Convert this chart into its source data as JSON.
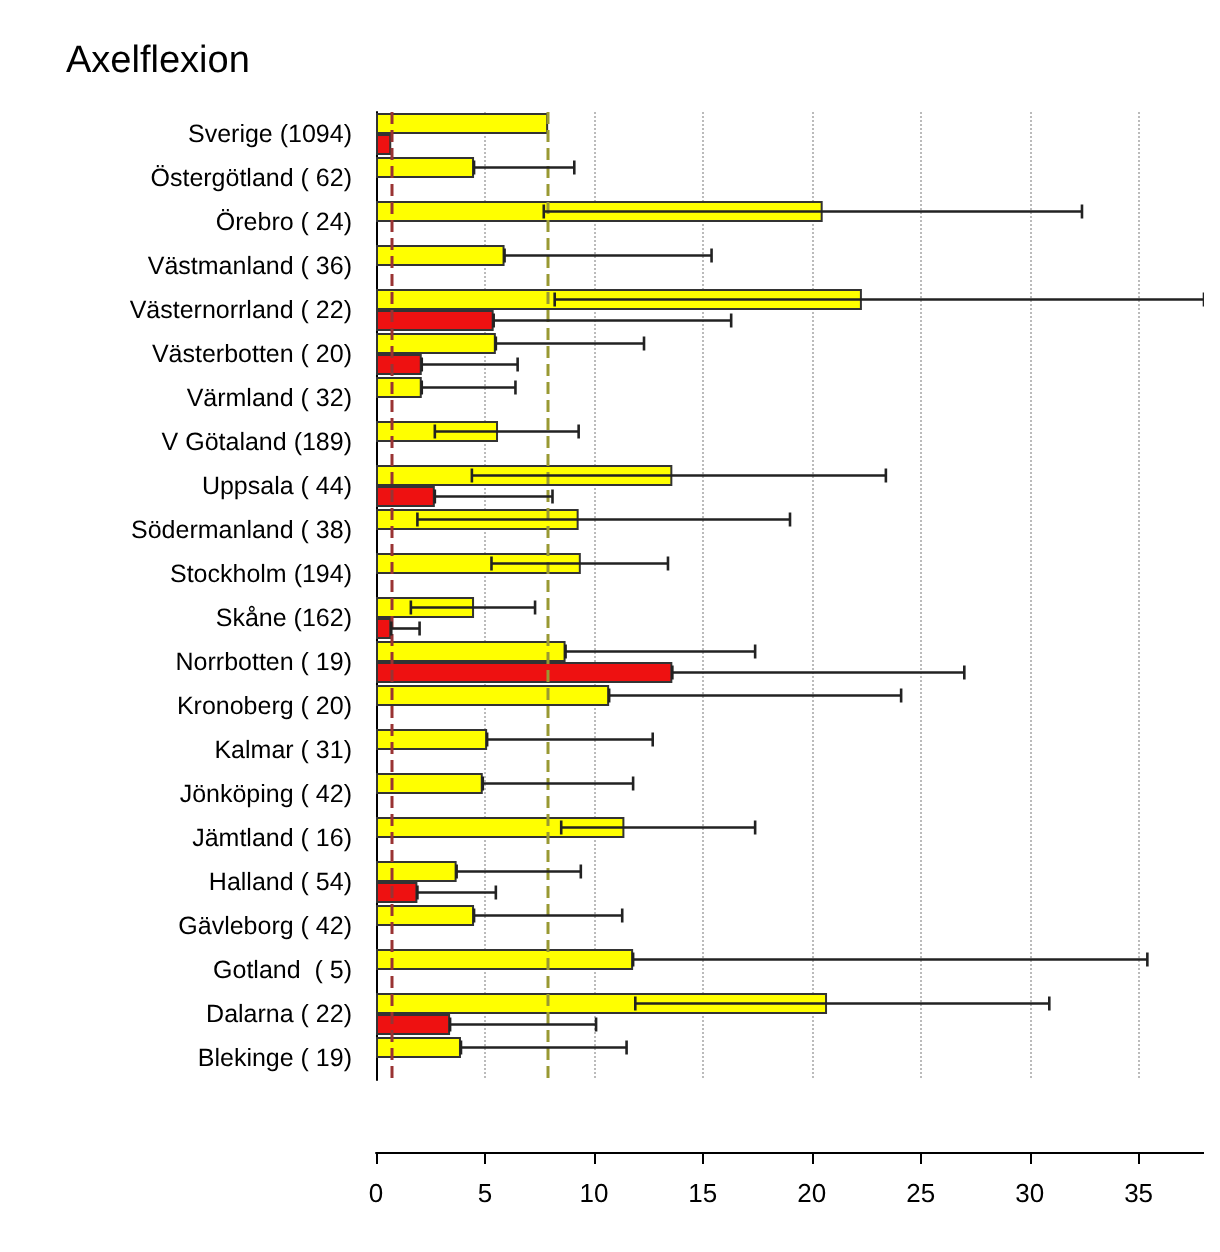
{
  "chart_data": {
    "type": "bar",
    "orientation": "horizontal",
    "title": "Axelflexion",
    "categories": [
      "Sverige (1094)",
      "Östergötland ( 62)",
      "Örebro ( 24)",
      "Västmanland ( 36)",
      "Västernorrland ( 22)",
      "Västerbotten ( 20)",
      "Värmland ( 32)",
      "V Götaland (189)",
      "Uppsala ( 44)",
      "Södermanland ( 38)",
      "Stockholm (194)",
      "Skåne (162)",
      "Norrbotten ( 19)",
      "Kronoberg ( 20)",
      "Kalmar ( 31)",
      "Jönköping ( 42)",
      "Jämtland ( 16)",
      "Halland ( 54)",
      "Gävleborg ( 42)",
      "Gotland  ( 5)",
      "Dalarna ( 22)",
      "Blekinge ( 19)"
    ],
    "series": [
      {
        "color": "#ffff00",
        "values": [
          7.9,
          4.5,
          20.5,
          5.9,
          22.3,
          5.5,
          2.1,
          5.6,
          13.6,
          9.3,
          9.4,
          4.5,
          8.7,
          10.7,
          5.1,
          4.9,
          11.4,
          3.7,
          4.5,
          11.8,
          20.7,
          3.9
        ],
        "errors": [
          null,
          [
            4.5,
            9.1
          ],
          [
            7.7,
            32.4
          ],
          [
            5.9,
            15.4
          ],
          [
            8.2,
            38
          ],
          [
            5.5,
            12.3
          ],
          [
            2.1,
            6.4
          ],
          [
            2.7,
            9.3
          ],
          [
            4.4,
            23.4
          ],
          [
            1.9,
            19.0
          ],
          [
            5.3,
            13.4
          ],
          [
            1.6,
            7.3
          ],
          [
            8.7,
            17.4
          ],
          [
            10.7,
            24.1
          ],
          [
            5.1,
            12.7
          ],
          [
            4.9,
            11.8
          ],
          [
            8.5,
            17.4
          ],
          [
            3.7,
            9.4
          ],
          [
            4.5,
            11.3
          ],
          [
            11.8,
            35.4
          ],
          [
            11.9,
            30.9
          ],
          [
            3.9,
            11.5
          ]
        ]
      },
      {
        "color": "#ee1111",
        "values": [
          0.7,
          null,
          null,
          null,
          5.4,
          2.1,
          null,
          null,
          2.7,
          null,
          null,
          0.7,
          13.6,
          null,
          null,
          null,
          null,
          1.9,
          null,
          null,
          3.4,
          null
        ],
        "errors": [
          null,
          null,
          null,
          null,
          [
            5.4,
            16.3
          ],
          [
            2.1,
            6.5
          ],
          null,
          null,
          [
            2.7,
            8.1
          ],
          null,
          null,
          [
            0.7,
            2.0
          ],
          [
            13.6,
            27.0
          ],
          null,
          null,
          null,
          null,
          [
            1.9,
            5.5
          ],
          null,
          null,
          [
            3.4,
            10.1
          ],
          null
        ]
      }
    ],
    "xlim": [
      0,
      38
    ],
    "xticks": [
      0,
      5,
      10,
      15,
      20,
      25,
      30,
      35
    ],
    "grid": "x",
    "ref_lines": [
      {
        "axis": "x",
        "value": 7.9,
        "color": "#999933",
        "line_style": "dashed"
      },
      {
        "axis": "x",
        "value": 0.7,
        "color": "#993333",
        "line_style": "dashed"
      }
    ]
  }
}
